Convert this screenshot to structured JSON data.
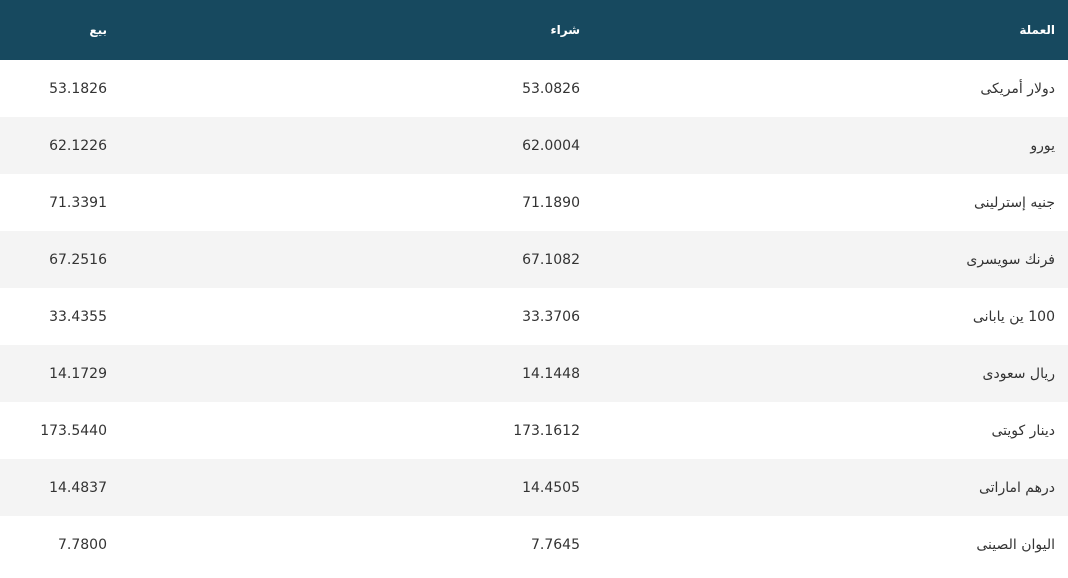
{
  "table": {
    "headers": [
      "العملة",
      "شراء",
      "بيع"
    ],
    "rows": [
      [
        "دولار أمريكى",
        "53.0826",
        "53.1826"
      ],
      [
        "يورو",
        "62.0004",
        "62.1226"
      ],
      [
        "جنيه إسترلينى",
        "71.1890",
        "71.3391"
      ],
      [
        "فرنك سويسرى",
        "67.1082",
        "67.2516"
      ],
      [
        "100 ين يابانى",
        "33.3706",
        "33.4355"
      ],
      [
        "ريال سعودى",
        "14.1448",
        "14.1729"
      ],
      [
        "دينار كويتى",
        "173.1612",
        "173.5440"
      ],
      [
        "درهم اماراتى",
        "14.4505",
        "14.4837"
      ],
      [
        "اليوان الصينى",
        "7.7645",
        "7.7800"
      ]
    ]
  }
}
